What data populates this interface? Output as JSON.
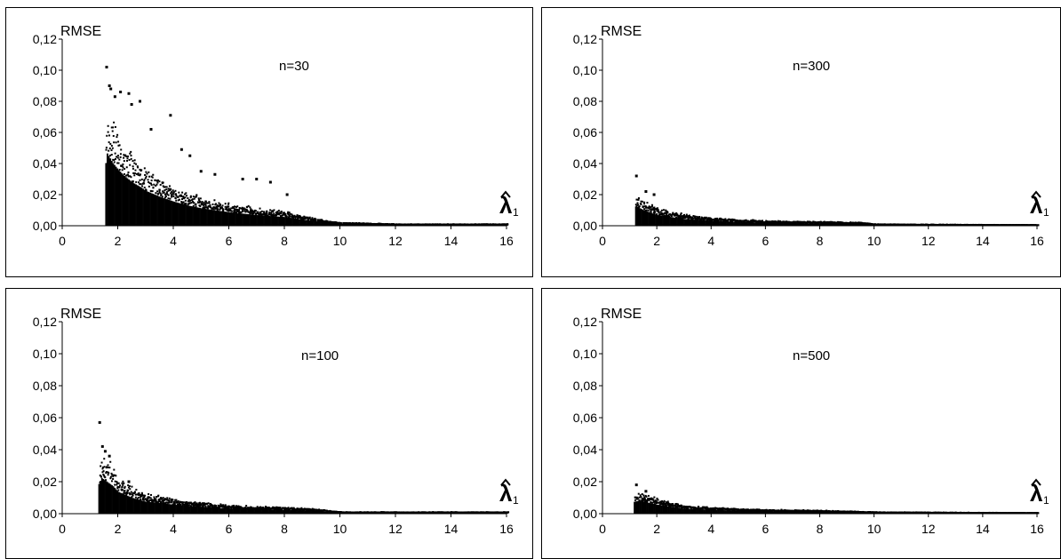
{
  "chart_data": [
    {
      "type": "scatter",
      "title": "",
      "annotation": "n=30",
      "ylabel": "RMSE",
      "xlabel": "λ̂1",
      "xlabel_main": "λ",
      "xlabel_sub": "1",
      "xlim": [
        0,
        16
      ],
      "ylim": [
        0,
        0.12
      ],
      "xticks": [
        "0",
        "2",
        "4",
        "6",
        "8",
        "10",
        "12",
        "14",
        "16"
      ],
      "yticks": [
        "0,00",
        "0,02",
        "0,04",
        "0,06",
        "0,08",
        "0,10",
        "0,12"
      ],
      "envelope": {
        "x": [
          1.55,
          1.6,
          1.7,
          1.8,
          2.0,
          2.2,
          2.5,
          2.8,
          3.0,
          3.5,
          4.0,
          4.5,
          5.0,
          6.0,
          7.0,
          8.0,
          9.0,
          9.5,
          10.0,
          11.0,
          12.0,
          14.0,
          16.0
        ],
        "y": [
          0.065,
          0.075,
          0.07,
          0.065,
          0.058,
          0.052,
          0.045,
          0.04,
          0.036,
          0.03,
          0.025,
          0.021,
          0.018,
          0.014,
          0.011,
          0.009,
          0.005,
          0.003,
          0.002,
          0.0015,
          0.001,
          0.001,
          0.001
        ]
      },
      "outliers": {
        "x": [
          1.6,
          1.7,
          1.75,
          1.9,
          2.1,
          2.4,
          2.5,
          2.8,
          3.2,
          3.9,
          4.3,
          4.6,
          5.0,
          5.5,
          6.5,
          7.0,
          7.5,
          8.1
        ],
        "y": [
          0.102,
          0.09,
          0.088,
          0.083,
          0.086,
          0.085,
          0.078,
          0.08,
          0.062,
          0.071,
          0.049,
          0.045,
          0.035,
          0.033,
          0.03,
          0.03,
          0.028,
          0.02
        ]
      }
    },
    {
      "type": "scatter",
      "title": "",
      "annotation": "n=300",
      "ylabel": "RMSE",
      "xlabel": "λ̂1",
      "xlabel_main": "λ",
      "xlabel_sub": "1",
      "xlim": [
        0,
        16
      ],
      "ylim": [
        0,
        0.12
      ],
      "xticks": [
        "0",
        "2",
        "4",
        "6",
        "8",
        "10",
        "12",
        "14",
        "16"
      ],
      "yticks": [
        "0,00",
        "0,02",
        "0,04",
        "0,06",
        "0,08",
        "0,10",
        "0,12"
      ],
      "envelope": {
        "x": [
          1.2,
          1.3,
          1.5,
          1.8,
          2.0,
          2.5,
          3.0,
          4.0,
          5.0,
          6.0,
          8.0,
          9.5,
          10.0,
          12.0,
          14.0,
          16.0
        ],
        "y": [
          0.02,
          0.019,
          0.016,
          0.013,
          0.011,
          0.009,
          0.007,
          0.005,
          0.004,
          0.003,
          0.0025,
          0.002,
          0.001,
          0.0008,
          0.0006,
          0.0005
        ]
      },
      "outliers": {
        "x": [
          1.25,
          1.6,
          1.9
        ],
        "y": [
          0.032,
          0.022,
          0.02
        ]
      }
    },
    {
      "type": "scatter",
      "title": "",
      "annotation": "n=100",
      "ylabel": "RMSE",
      "xlabel": "λ̂1",
      "xlabel_main": "λ",
      "xlabel_sub": "1",
      "xlim": [
        0,
        16
      ],
      "ylim": [
        0,
        0.12
      ],
      "xticks": [
        "0",
        "2",
        "4",
        "6",
        "8",
        "10",
        "12",
        "14",
        "16"
      ],
      "yticks": [
        "0,00",
        "0,02",
        "0,04",
        "0,06",
        "0,08",
        "0,10",
        "0,12"
      ],
      "envelope": {
        "x": [
          1.3,
          1.4,
          1.6,
          1.8,
          2.0,
          2.5,
          3.0,
          3.5,
          4.0,
          5.0,
          6.0,
          7.0,
          8.0,
          9.0,
          9.5,
          10.0,
          12.0,
          14.0,
          16.0
        ],
        "y": [
          0.03,
          0.036,
          0.032,
          0.028,
          0.022,
          0.016,
          0.012,
          0.011,
          0.009,
          0.007,
          0.005,
          0.0045,
          0.004,
          0.003,
          0.002,
          0.001,
          0.001,
          0.001,
          0.001
        ]
      },
      "outliers": {
        "x": [
          1.35,
          1.45,
          1.55,
          1.7,
          2.4
        ],
        "y": [
          0.057,
          0.042,
          0.039,
          0.036,
          0.02
        ]
      }
    },
    {
      "type": "scatter",
      "title": "",
      "annotation": "n=500",
      "ylabel": "RMSE",
      "xlabel": "λ̂1",
      "xlabel_main": "λ",
      "xlabel_sub": "1",
      "xlim": [
        0,
        16
      ],
      "ylim": [
        0,
        0.12
      ],
      "xticks": [
        "0",
        "2",
        "4",
        "6",
        "8",
        "10",
        "12",
        "14",
        "16"
      ],
      "yticks": [
        "0,00",
        "0,02",
        "0,04",
        "0,06",
        "0,08",
        "0,10",
        "0,12"
      ],
      "envelope": {
        "x": [
          1.15,
          1.3,
          1.5,
          2.0,
          2.5,
          3.0,
          4.0,
          5.0,
          6.0,
          8.0,
          9.0,
          10.0,
          12.0,
          14.0,
          16.0
        ],
        "y": [
          0.012,
          0.013,
          0.012,
          0.009,
          0.007,
          0.005,
          0.004,
          0.003,
          0.0025,
          0.002,
          0.0015,
          0.001,
          0.0008,
          0.0006,
          0.0005
        ]
      },
      "outliers": {
        "x": [
          1.25,
          1.6
        ],
        "y": [
          0.018,
          0.014
        ]
      }
    }
  ]
}
